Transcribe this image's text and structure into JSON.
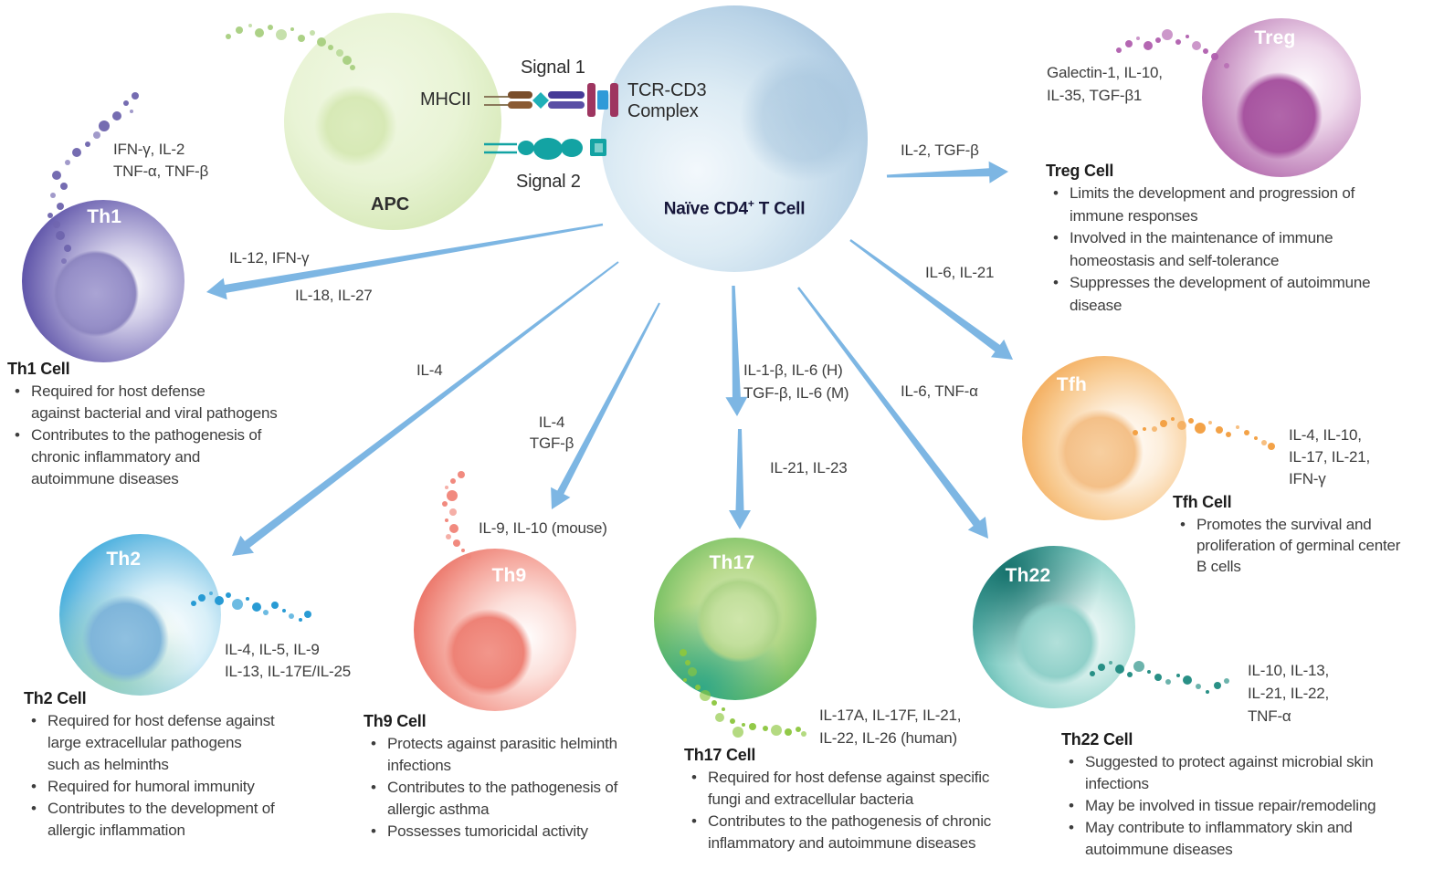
{
  "colors": {
    "arrow": "#7db6e3",
    "text": "#3d3d3d",
    "th1": "#3f3494",
    "th2": "#1e96d2",
    "th9": "#e4574c",
    "th17": "#2aa65c",
    "th22": "#159089",
    "tfh": "#ef9330",
    "treg": "#a3479c",
    "apc": "#c4de9e",
    "naive": "#8db0d2"
  },
  "interaction": {
    "signal1": "Signal 1",
    "signal2": "Signal 2",
    "mhc": "MHCII",
    "tcr_line1": "TCR-CD3",
    "tcr_line2": "Complex"
  },
  "apc": {
    "label": "APC"
  },
  "naive": {
    "label_pre": "Naïve CD4",
    "label_sup": "+",
    "label_post": " T Cell"
  },
  "cells": {
    "th1": {
      "label": "Th1",
      "arrow_label_top": "IL-12, IFN-γ",
      "arrow_label_bottom": "IL-18, IL-27",
      "secreted": "IFN-γ, IL-2\nTNF-α, TNF-β",
      "heading": "Th1 Cell",
      "bullets": [
        "Required for host defense\nagainst bacterial and viral pathogens",
        "Contributes to the pathogenesis of\nchronic inflammatory and\nautoimmune diseases"
      ]
    },
    "th2": {
      "label": "Th2",
      "arrow_label": "IL-4",
      "secreted": "IL-4, IL-5, IL-9\nIL-13, IL-17E/IL-25",
      "heading": "Th2 Cell",
      "bullets": [
        "Required for host defense against\nlarge extracellular pathogens\nsuch as helminths",
        "Required for humoral immunity",
        "Contributes to the development of\nallergic inflammation"
      ]
    },
    "th9": {
      "label": "Th9",
      "arrow_label": "IL-4\nTGF-β",
      "secreted": "IL-9, IL-10 (mouse)",
      "heading": "Th9 Cell",
      "bullets": [
        "Protects against parasitic helminth\ninfections",
        "Contributes to the pathogenesis of\nallergic asthma",
        "Possesses tumoricidal activity"
      ]
    },
    "th17": {
      "label": "Th17",
      "arrow_label_initial": "IL-1-β, IL-6 (H)\nTGF-β, IL-6 (M)",
      "arrow_label_expansion": "IL-21, IL-23",
      "secreted": "IL-17A, IL-17F, IL-21,\nIL-22, IL-26 (human)",
      "heading": "Th17 Cell",
      "bullets": [
        "Required for host defense against specific\nfungi and extracellular bacteria",
        "Contributes to the pathogenesis of chronic\ninflammatory and autoimmune diseases"
      ]
    },
    "th22": {
      "label": "Th22",
      "arrow_label": "IL-6, TNF-α",
      "secreted": "IL-10, IL-13,\nIL-21, IL-22,\nTNF-α",
      "heading": "Th22 Cell",
      "bullets": [
        "Suggested to protect against microbial skin\ninfections",
        "May be involved in tissue repair/remodeling",
        "May contribute to inflammatory skin and\nautoimmune diseases"
      ]
    },
    "tfh": {
      "label": "Tfh",
      "arrow_label": "IL-6, IL-21",
      "secreted": "IL-4, IL-10,\nIL-17, IL-21,\nIFN-γ",
      "heading": "Tfh Cell",
      "bullets": [
        "Promotes the survival and\nproliferation of germinal center\nB cells"
      ]
    },
    "treg": {
      "label": "Treg",
      "arrow_label": "IL-2, TGF-β",
      "secreted": "Galectin-1, IL-10,\nIL-35, TGF-β1",
      "heading": "Treg Cell",
      "bullets": [
        "Limits the development and progression of\nimmune responses",
        "Involved in the maintenance of immune\nhomeostasis and self-tolerance",
        "Suppresses the development of autoimmune\ndisease"
      ]
    }
  }
}
